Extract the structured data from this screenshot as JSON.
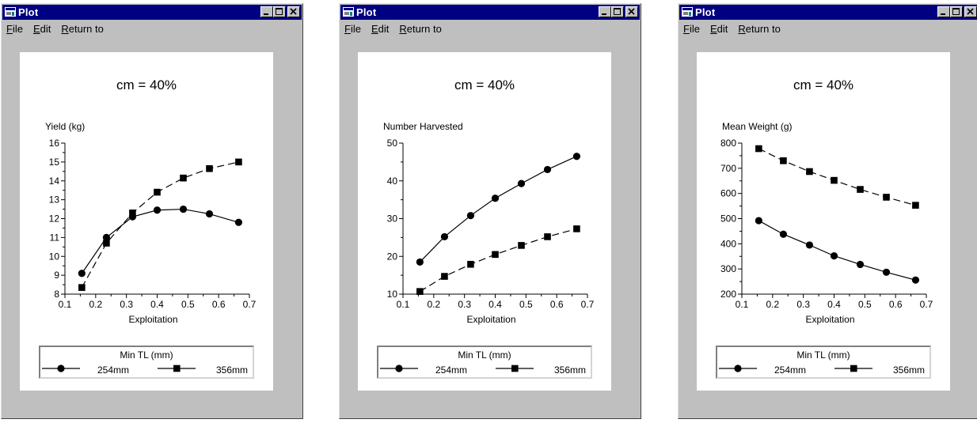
{
  "windows": [
    {
      "title": "Plot",
      "menu": [
        "File",
        "Edit",
        "Return to"
      ],
      "menu_hotkeys": [
        "F",
        "E",
        "R"
      ],
      "chart_data": {
        "type": "line",
        "title": "cm = 40%",
        "ylabel": "Yield (kg)",
        "xlabel": "Exploitation",
        "xlim": [
          0.1,
          0.7
        ],
        "ylim": [
          8,
          16
        ],
        "xticks": [
          "0.1",
          "0.2",
          "0.3",
          "0.4",
          "0.5",
          "0.6",
          "0.7"
        ],
        "yticks": [
          "8",
          "9",
          "10",
          "11",
          "12",
          "13",
          "14",
          "15",
          "16"
        ],
        "legend_title": "Min TL (mm)",
        "series": [
          {
            "name": "254mm",
            "marker": "circle",
            "dash": "solid",
            "x": [
              0.155,
              0.235,
              0.32,
              0.4,
              0.485,
              0.57,
              0.665
            ],
            "y": [
              9.1,
              11.0,
              12.1,
              12.45,
              12.5,
              12.25,
              11.8
            ]
          },
          {
            "name": "356mm",
            "marker": "square",
            "dash": "dashed",
            "x": [
              0.155,
              0.235,
              0.32,
              0.4,
              0.485,
              0.57,
              0.665
            ],
            "y": [
              8.35,
              10.7,
              12.3,
              13.4,
              14.15,
              14.65,
              15.0
            ]
          }
        ]
      }
    },
    {
      "title": "Plot",
      "menu": [
        "File",
        "Edit",
        "Return to"
      ],
      "menu_hotkeys": [
        "F",
        "E",
        "R"
      ],
      "chart_data": {
        "type": "line",
        "title": "cm = 40%",
        "ylabel": "Number Harvested",
        "xlabel": "Exploitation",
        "xlim": [
          0.1,
          0.7
        ],
        "ylim": [
          10,
          50
        ],
        "xticks": [
          "0.1",
          "0.2",
          "0.3",
          "0.4",
          "0.5",
          "0.6",
          "0.7"
        ],
        "yticks": [
          "10",
          "20",
          "30",
          "40",
          "50"
        ],
        "legend_title": "Min TL (mm)",
        "series": [
          {
            "name": "254mm",
            "marker": "circle",
            "dash": "solid",
            "x": [
              0.155,
              0.235,
              0.32,
              0.4,
              0.485,
              0.57,
              0.665
            ],
            "y": [
              18.5,
              25.2,
              30.8,
              35.4,
              39.3,
              43.0,
              46.5
            ]
          },
          {
            "name": "356mm",
            "marker": "square",
            "dash": "dashed",
            "x": [
              0.155,
              0.235,
              0.32,
              0.4,
              0.485,
              0.57,
              0.665
            ],
            "y": [
              10.7,
              14.7,
              17.9,
              20.5,
              22.9,
              25.2,
              27.3
            ]
          }
        ]
      }
    },
    {
      "title": "Plot",
      "menu": [
        "File",
        "Edit",
        "Return to"
      ],
      "menu_hotkeys": [
        "F",
        "E",
        "R"
      ],
      "chart_data": {
        "type": "line",
        "title": "cm = 40%",
        "ylabel": "Mean Weight (g)",
        "xlabel": "Exploitation",
        "xlim": [
          0.1,
          0.7
        ],
        "ylim": [
          200,
          800
        ],
        "xticks": [
          "0.1",
          "0.2",
          "0.3",
          "0.4",
          "0.5",
          "0.6",
          "0.7"
        ],
        "yticks": [
          "200",
          "300",
          "400",
          "500",
          "600",
          "700",
          "800"
        ],
        "legend_title": "Min TL (mm)",
        "series": [
          {
            "name": "254mm",
            "marker": "circle",
            "dash": "solid",
            "x": [
              0.155,
              0.235,
              0.32,
              0.4,
              0.485,
              0.57,
              0.665
            ],
            "y": [
              492,
              438,
              395,
              352,
              318,
              287,
              256
            ]
          },
          {
            "name": "356mm",
            "marker": "square",
            "dash": "dashed",
            "x": [
              0.155,
              0.235,
              0.32,
              0.4,
              0.485,
              0.57,
              0.665
            ],
            "y": [
              778,
              730,
              687,
              652,
              616,
              585,
              553
            ]
          }
        ]
      }
    }
  ]
}
